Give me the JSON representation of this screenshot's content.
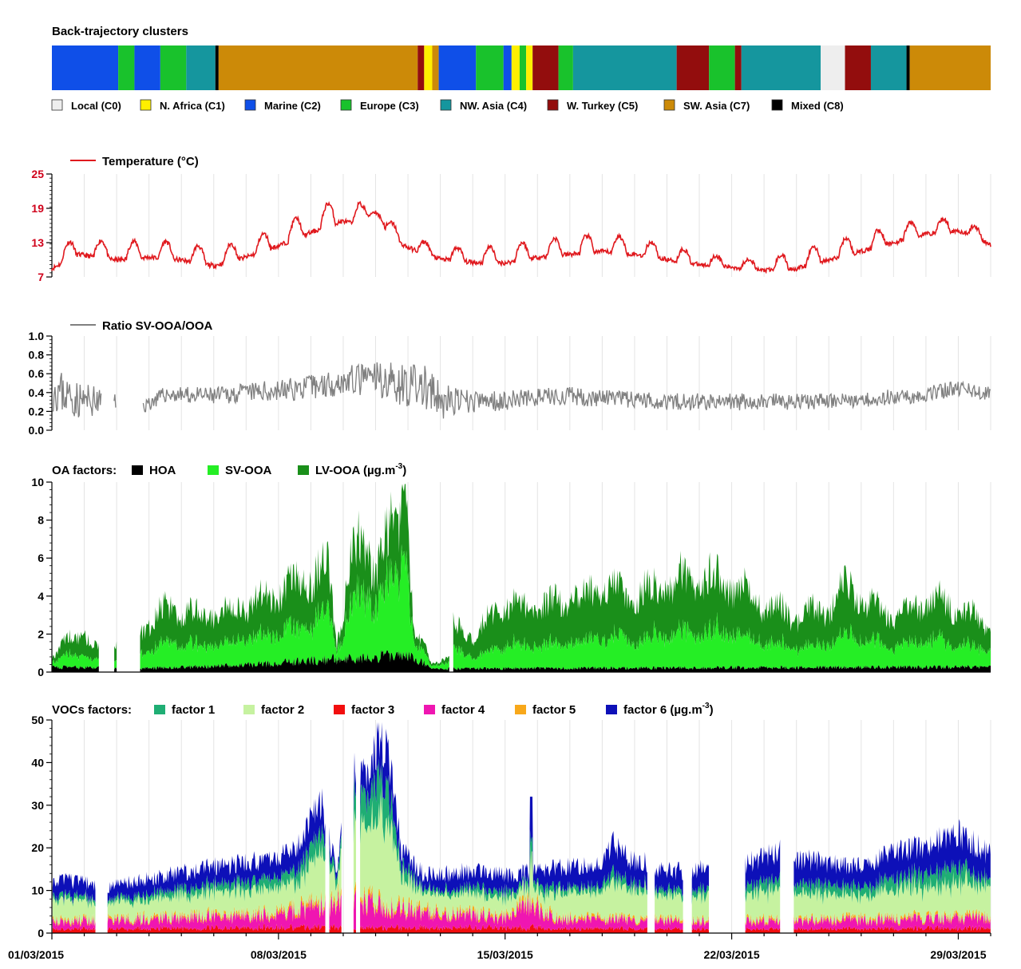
{
  "colors": {
    "local": "#eeeeee",
    "n_africa": "#ffef00",
    "marine": "#0f4fe8",
    "europe": "#19c22c",
    "nw_asia": "#15969e",
    "w_turkey": "#930d0d",
    "sw_asia": "#cc8a08",
    "mixed": "#000000",
    "temperature": "#e0191e",
    "ratio": "#808080",
    "hoa": "#000000",
    "sv_ooa": "#25ee25",
    "lv_ooa": "#1a8f1a",
    "f1": "#1fae74",
    "f2": "#c6f2a0",
    "f3": "#f20e0e",
    "f4": "#ef16b1",
    "f5": "#f8a81a",
    "f6": "#0d10b8",
    "grid": "#e4e4e4"
  },
  "chart_data": [
    {
      "type": "bar",
      "title": "Back-trajectory clusters",
      "x_range_days": [
        0,
        29
      ],
      "legend": [
        {
          "key": "C0",
          "label": "Local (C0)",
          "color_key": "local"
        },
        {
          "key": "C1",
          "label": "N. Africa (C1)",
          "color_key": "n_africa"
        },
        {
          "key": "C2",
          "label": "Marine (C2)",
          "color_key": "marine"
        },
        {
          "key": "C3",
          "label": "Europe (C3)",
          "color_key": "europe"
        },
        {
          "key": "C4",
          "label": "NW. Asia (C4)",
          "color_key": "nw_asia"
        },
        {
          "key": "C5",
          "label": "W. Turkey (C5)",
          "color_key": "w_turkey"
        },
        {
          "key": "C7",
          "label": "SW. Asia (C7)",
          "color_key": "sw_asia"
        },
        {
          "key": "C8",
          "label": "Mixed (C8)",
          "color_key": "mixed"
        }
      ],
      "segments": [
        {
          "start": 0.0,
          "end": 2.05,
          "cluster": "C2"
        },
        {
          "start": 2.05,
          "end": 2.55,
          "cluster": "C3"
        },
        {
          "start": 2.55,
          "end": 3.35,
          "cluster": "C2"
        },
        {
          "start": 3.35,
          "end": 4.15,
          "cluster": "C3"
        },
        {
          "start": 4.15,
          "end": 5.05,
          "cluster": "C4"
        },
        {
          "start": 5.05,
          "end": 5.15,
          "cluster": "C8"
        },
        {
          "start": 5.15,
          "end": 11.3,
          "cluster": "C7"
        },
        {
          "start": 11.3,
          "end": 11.5,
          "cluster": "C5"
        },
        {
          "start": 11.5,
          "end": 11.75,
          "cluster": "C1"
        },
        {
          "start": 11.75,
          "end": 11.95,
          "cluster": "C7"
        },
        {
          "start": 11.95,
          "end": 13.1,
          "cluster": "C2"
        },
        {
          "start": 13.1,
          "end": 13.95,
          "cluster": "C3"
        },
        {
          "start": 13.95,
          "end": 14.2,
          "cluster": "C2"
        },
        {
          "start": 14.2,
          "end": 14.45,
          "cluster": "C1"
        },
        {
          "start": 14.45,
          "end": 14.65,
          "cluster": "C3"
        },
        {
          "start": 14.65,
          "end": 14.85,
          "cluster": "C1"
        },
        {
          "start": 14.85,
          "end": 15.65,
          "cluster": "C5"
        },
        {
          "start": 15.65,
          "end": 16.1,
          "cluster": "C3"
        },
        {
          "start": 16.1,
          "end": 19.3,
          "cluster": "C4"
        },
        {
          "start": 19.3,
          "end": 20.3,
          "cluster": "C5"
        },
        {
          "start": 20.3,
          "end": 21.1,
          "cluster": "C3"
        },
        {
          "start": 21.1,
          "end": 21.3,
          "cluster": "C5"
        },
        {
          "start": 21.3,
          "end": 23.75,
          "cluster": "C4"
        },
        {
          "start": 23.75,
          "end": 24.5,
          "cluster": "C0"
        },
        {
          "start": 24.5,
          "end": 25.3,
          "cluster": "C5"
        },
        {
          "start": 25.3,
          "end": 26.4,
          "cluster": "C4"
        },
        {
          "start": 26.4,
          "end": 26.5,
          "cluster": "C8"
        },
        {
          "start": 26.5,
          "end": 29.0,
          "cluster": "C7"
        }
      ]
    },
    {
      "type": "line",
      "legend": "Temperature (°C)",
      "y_ticks": [
        7,
        13,
        19,
        25
      ],
      "ylim": [
        7,
        25
      ],
      "x_days_step": 0.25,
      "baseline": [
        [
          0,
          9
        ],
        [
          0.8,
          11.5
        ],
        [
          2,
          10.5
        ],
        [
          3,
          11
        ],
        [
          4,
          10.5
        ],
        [
          5,
          9.5
        ],
        [
          6,
          11
        ],
        [
          7,
          13
        ],
        [
          8,
          15.5
        ],
        [
          9,
          17.5
        ],
        [
          10,
          16
        ],
        [
          11,
          12.5
        ],
        [
          12,
          10.5
        ],
        [
          13,
          10
        ],
        [
          14,
          10
        ],
        [
          15,
          11
        ],
        [
          16,
          11.5
        ],
        [
          17,
          12
        ],
        [
          18,
          11.5
        ],
        [
          19,
          10.5
        ],
        [
          20,
          9.5
        ],
        [
          21,
          9
        ],
        [
          22,
          8.5
        ],
        [
          23,
          9
        ],
        [
          24,
          10.5
        ],
        [
          25,
          12
        ],
        [
          26,
          13.5
        ],
        [
          27,
          15
        ],
        [
          28,
          15.5
        ],
        [
          29,
          13
        ]
      ],
      "amplitude": [
        [
          0,
          3
        ],
        [
          3,
          3
        ],
        [
          7,
          3
        ],
        [
          8,
          4
        ],
        [
          9,
          4
        ],
        [
          10,
          3.5
        ],
        [
          11,
          2
        ],
        [
          12,
          2
        ],
        [
          14,
          3
        ],
        [
          17,
          3
        ],
        [
          19,
          2.5
        ],
        [
          21,
          1.5
        ],
        [
          22,
          2
        ],
        [
          23,
          3
        ],
        [
          26,
          3
        ],
        [
          28,
          2
        ],
        [
          29,
          2
        ]
      ]
    },
    {
      "type": "line",
      "legend": "Ratio SV-OOA/OOA",
      "y_ticks": [
        "0.0",
        "0.2",
        "0.4",
        "0.6",
        "0.8",
        "1.0"
      ],
      "ylim": [
        0,
        1
      ],
      "x_days_step": 0.08,
      "gaps": [
        [
          1.52,
          1.9
        ],
        [
          1.98,
          2.8
        ]
      ],
      "baseline": [
        [
          0,
          0.45
        ],
        [
          0.8,
          0.32
        ],
        [
          1.5,
          0.3
        ],
        [
          2.8,
          0.25
        ],
        [
          3.5,
          0.38
        ],
        [
          5,
          0.36
        ],
        [
          6,
          0.4
        ],
        [
          7,
          0.42
        ],
        [
          8,
          0.46
        ],
        [
          9,
          0.52
        ],
        [
          10,
          0.55
        ],
        [
          11,
          0.48
        ],
        [
          11.5,
          0.45
        ],
        [
          12,
          0.3
        ],
        [
          13,
          0.3
        ],
        [
          14,
          0.32
        ],
        [
          15,
          0.35
        ],
        [
          16,
          0.36
        ],
        [
          17,
          0.34
        ],
        [
          18,
          0.32
        ],
        [
          19,
          0.31
        ],
        [
          20,
          0.3
        ],
        [
          21,
          0.3
        ],
        [
          22,
          0.3
        ],
        [
          23,
          0.3
        ],
        [
          24,
          0.31
        ],
        [
          25,
          0.33
        ],
        [
          26,
          0.35
        ],
        [
          27,
          0.38
        ],
        [
          28,
          0.45
        ],
        [
          29,
          0.38
        ]
      ],
      "noise": [
        [
          0,
          0.25
        ],
        [
          1.5,
          0.15
        ],
        [
          3,
          0.08
        ],
        [
          6,
          0.1
        ],
        [
          9,
          0.15
        ],
        [
          10,
          0.2
        ],
        [
          11.5,
          0.25
        ],
        [
          12.5,
          0.15
        ],
        [
          13,
          0.12
        ],
        [
          15,
          0.1
        ],
        [
          29,
          0.08
        ]
      ]
    },
    {
      "type": "area",
      "legend_prefix": "OA factors:",
      "series": [
        {
          "name": "HOA",
          "color_key": "hoa"
        },
        {
          "name": "SV-OOA",
          "color_key": "sv_ooa"
        },
        {
          "name": "LV-OOA (µg.m",
          "color_key": "lv_ooa",
          "sup": "-3",
          "suffix": ")"
        }
      ],
      "y_ticks": [
        0,
        2,
        4,
        6,
        8,
        10
      ],
      "ylim": [
        0,
        10
      ],
      "x_days_step": 0.1,
      "gaps": [
        [
          1.45,
          1.9
        ],
        [
          2.0,
          2.7
        ],
        [
          12.3,
          12.4
        ]
      ],
      "lv_envelope": [
        [
          0,
          0.8
        ],
        [
          0.5,
          1.8
        ],
        [
          1.0,
          2.2
        ],
        [
          1.4,
          1.2
        ],
        [
          2.7,
          2.2
        ],
        [
          3.5,
          3.5
        ],
        [
          4.5,
          3.2
        ],
        [
          5.5,
          3.5
        ],
        [
          6.5,
          4
        ],
        [
          7.5,
          4.8
        ],
        [
          8,
          5.2
        ],
        [
          8.5,
          6.2
        ],
        [
          8.8,
          1.5
        ],
        [
          9.2,
          6
        ],
        [
          9.6,
          7
        ],
        [
          10,
          6
        ],
        [
          10.4,
          7.5
        ],
        [
          11,
          8.5
        ],
        [
          11.2,
          2
        ],
        [
          11.5,
          1.5
        ],
        [
          11.7,
          0.5
        ],
        [
          12.3,
          0.8
        ],
        [
          12.4,
          2.5
        ],
        [
          13,
          2
        ],
        [
          14,
          3.8
        ],
        [
          15,
          3.5
        ],
        [
          16,
          4
        ],
        [
          17,
          4.5
        ],
        [
          18,
          4.2
        ],
        [
          19,
          4.8
        ],
        [
          20,
          5.2
        ],
        [
          21,
          4.8
        ],
        [
          22,
          3.8
        ],
        [
          23,
          3
        ],
        [
          24,
          3.5
        ],
        [
          24.5,
          5
        ],
        [
          25,
          4
        ],
        [
          26,
          3
        ],
        [
          27,
          4
        ],
        [
          28,
          3.5
        ],
        [
          29,
          2.5
        ]
      ],
      "sv_fraction": [
        [
          0,
          0.45
        ],
        [
          2,
          0.35
        ],
        [
          3,
          0.4
        ],
        [
          8,
          0.45
        ],
        [
          9,
          0.55
        ],
        [
          11,
          0.6
        ],
        [
          12,
          0.55
        ],
        [
          13,
          0.35
        ],
        [
          20,
          0.4
        ],
        [
          29,
          0.4
        ]
      ],
      "hoa_envelope": [
        [
          0,
          0.3
        ],
        [
          2.7,
          0.2
        ],
        [
          6,
          0.4
        ],
        [
          9,
          0.8
        ],
        [
          10,
          0.9
        ],
        [
          11,
          0.9
        ],
        [
          12,
          0.2
        ],
        [
          29,
          0.3
        ]
      ]
    },
    {
      "type": "area",
      "legend_prefix": "VOCs factors:",
      "series": [
        {
          "name": "factor 1",
          "color_key": "f1"
        },
        {
          "name": "factor 2",
          "color_key": "f2"
        },
        {
          "name": "factor 3",
          "color_key": "f3"
        },
        {
          "name": "factor 4",
          "color_key": "f4"
        },
        {
          "name": "factor 5",
          "color_key": "f5"
        },
        {
          "name": "factor 6 (µg.m",
          "color_key": "f6",
          "sup": "-3",
          "suffix": ")"
        }
      ],
      "y_ticks": [
        0,
        10,
        20,
        30,
        40,
        50
      ],
      "ylim": [
        0,
        50
      ],
      "x_days_step": 0.1,
      "gaps": [
        [
          1.35,
          1.7
        ],
        [
          8.45,
          8.55
        ],
        [
          8.95,
          9.3
        ],
        [
          9.4,
          9.5
        ],
        [
          18.4,
          18.6
        ],
        [
          19.5,
          19.75
        ],
        [
          20.3,
          21.4
        ],
        [
          22.5,
          22.9
        ]
      ],
      "total_envelope": [
        [
          0,
          13
        ],
        [
          1.3,
          12
        ],
        [
          1.7,
          11
        ],
        [
          3,
          13
        ],
        [
          5,
          16
        ],
        [
          7,
          18
        ],
        [
          7.7,
          22
        ],
        [
          8.3,
          32
        ],
        [
          8.8,
          15
        ],
        [
          9.2,
          40
        ],
        [
          9.5,
          37
        ],
        [
          10.3,
          48
        ],
        [
          10.8,
          20
        ],
        [
          11.5,
          14
        ],
        [
          13,
          15
        ],
        [
          14,
          14
        ],
        [
          15,
          15
        ],
        [
          16,
          16
        ],
        [
          17,
          16
        ],
        [
          17.3,
          22
        ],
        [
          17.8,
          18
        ],
        [
          18.4,
          17
        ],
        [
          18.6,
          15
        ],
        [
          19.5,
          15
        ],
        [
          21.5,
          17
        ],
        [
          22.5,
          20
        ],
        [
          23,
          18
        ],
        [
          24,
          17
        ],
        [
          25,
          16
        ],
        [
          26,
          20
        ],
        [
          27,
          21
        ],
        [
          28,
          24
        ],
        [
          29,
          19
        ]
      ],
      "f6_fraction": [
        [
          0,
          0.4
        ],
        [
          8,
          0.35
        ],
        [
          9,
          0.15
        ],
        [
          10,
          0.2
        ],
        [
          11,
          0.3
        ],
        [
          12,
          0.4
        ],
        [
          29,
          0.4
        ]
      ],
      "f1_fraction": [
        [
          0,
          0.1
        ],
        [
          8,
          0.2
        ],
        [
          10,
          0.25
        ],
        [
          12,
          0.1
        ],
        [
          14.8,
          0.2
        ],
        [
          16,
          0.1
        ],
        [
          28,
          0.2
        ],
        [
          29,
          0.1
        ]
      ],
      "low_envelope": [
        [
          0,
          3
        ],
        [
          7,
          5
        ],
        [
          9,
          9
        ],
        [
          10,
          8
        ],
        [
          11,
          6
        ],
        [
          14,
          4
        ],
        [
          14.8,
          8
        ],
        [
          15.5,
          4
        ],
        [
          20,
          3
        ],
        [
          29,
          4
        ]
      ],
      "x_tick_labels": [
        {
          "day": 0,
          "label": "01/03/2015"
        },
        {
          "day": 7,
          "label": "08/03/2015"
        },
        {
          "day": 14,
          "label": "15/03/2015"
        },
        {
          "day": 21,
          "label": "22/03/2015"
        },
        {
          "day": 28,
          "label": "29/03/2015"
        }
      ]
    }
  ]
}
